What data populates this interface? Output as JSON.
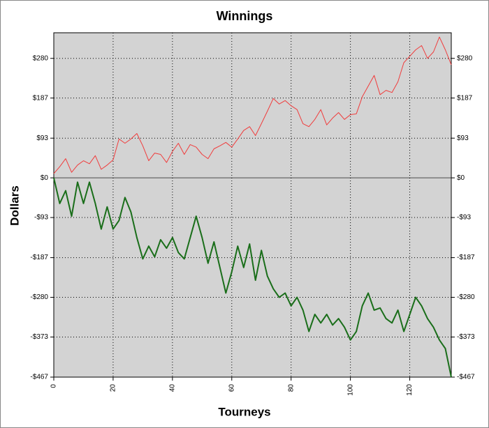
{
  "chart_data": {
    "type": "line",
    "title": "Winnings",
    "xlabel": "Tourneys",
    "ylabel": "Dollars",
    "x": [
      0,
      2,
      4,
      6,
      8,
      10,
      12,
      14,
      16,
      18,
      20,
      22,
      24,
      26,
      28,
      30,
      32,
      34,
      36,
      38,
      40,
      42,
      44,
      46,
      48,
      50,
      52,
      54,
      56,
      58,
      60,
      62,
      64,
      66,
      68,
      70,
      72,
      74,
      76,
      78,
      80,
      82,
      84,
      86,
      88,
      90,
      92,
      94,
      96,
      98,
      100,
      102,
      104,
      106,
      108,
      110,
      112,
      114,
      116,
      118,
      120,
      122,
      124,
      126,
      128,
      130,
      132,
      134
    ],
    "series": [
      {
        "color": "#f03c3c",
        "values": [
          10,
          26,
          45,
          13,
          30,
          40,
          33,
          52,
          20,
          30,
          42,
          91,
          81,
          91,
          104,
          75,
          40,
          58,
          55,
          36,
          62,
          81,
          55,
          78,
          72,
          55,
          45,
          68,
          75,
          83,
          72,
          91,
          111,
          120,
          99,
          127,
          156,
          186,
          173,
          181,
          169,
          160,
          127,
          120,
          137,
          160,
          124,
          140,
          153,
          137,
          148,
          150,
          190,
          215,
          240,
          195,
          205,
          200,
          225,
          270,
          285,
          300,
          310,
          280,
          295,
          330,
          300,
          265
        ]
      },
      {
        "color": "#1a6e1a",
        "values": [
          0,
          -60,
          -30,
          -90,
          -10,
          -60,
          -10,
          -60,
          -120,
          -68,
          -120,
          -100,
          -46,
          -80,
          -140,
          -190,
          -160,
          -185,
          -145,
          -165,
          -140,
          -175,
          -190,
          -140,
          -90,
          -140,
          -200,
          -150,
          -210,
          -270,
          -220,
          -160,
          -210,
          -155,
          -240,
          -170,
          -230,
          -260,
          -280,
          -270,
          -300,
          -280,
          -310,
          -360,
          -320,
          -340,
          -320,
          -345,
          -330,
          -350,
          -380,
          -360,
          -300,
          -270,
          -310,
          -305,
          -330,
          -340,
          -310,
          -360,
          -320,
          -280,
          -300,
          -330,
          -350,
          -380,
          -400,
          -467
        ]
      }
    ],
    "xlim": [
      0,
      134
    ],
    "xticks": [
      0,
      20,
      40,
      60,
      80,
      100,
      120
    ],
    "ylim": [
      -467,
      340
    ],
    "yticks": [
      {
        "value": -467,
        "label": "-$467"
      },
      {
        "value": -373,
        "label": "-$373"
      },
      {
        "value": -280,
        "label": "-$280"
      },
      {
        "value": -187,
        "label": "-$187"
      },
      {
        "value": -93,
        "label": "-$93"
      },
      {
        "value": 0,
        "label": "$0"
      },
      {
        "value": 93,
        "label": "$93"
      },
      {
        "value": 187,
        "label": "$187"
      },
      {
        "value": 280,
        "label": "$280"
      }
    ],
    "grid": true
  }
}
